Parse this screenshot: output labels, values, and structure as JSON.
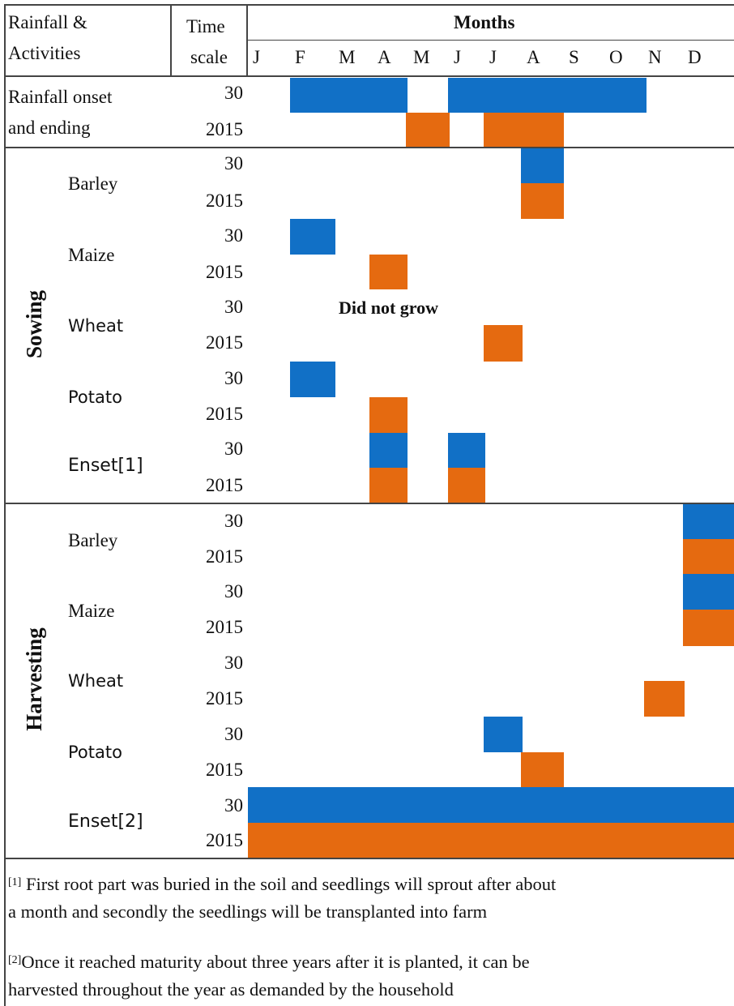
{
  "colors": {
    "period_30": "#1170c6",
    "year_2015": "#e56a10"
  },
  "header": {
    "activity": [
      "Rainfall &",
      "Activities"
    ],
    "time": [
      "Time",
      "scale"
    ],
    "months_title": "Months",
    "months": [
      "J",
      "F",
      "M",
      "A",
      "M",
      "J",
      "J",
      "A",
      "S",
      "O",
      "N",
      "D"
    ]
  },
  "rainfall": {
    "label": [
      "Rainfall onset",
      "and ending"
    ]
  },
  "periods": {
    "p30": "30",
    "p2015": "2015"
  },
  "sections": {
    "sowing": "Sowing",
    "harvesting": "Harvesting"
  },
  "crops": {
    "barley": "Barley",
    "maize": "Maize",
    "wheat": "Wheat",
    "potato": "Potato",
    "enset_sow": "Enset[1]",
    "enset_harvest": "Enset[2]"
  },
  "note_wheat": "Did not grow",
  "footnotes": {
    "f1_mark": "[1]",
    "f1_line1": " First root part was buried in the soil and seedlings will sprout after about",
    "f1_line2": "a month and secondly the seedlings will be transplanted into farm",
    "f2_mark": "[2]",
    "f2_line1": "Once it reached maturity about three years after it is planted, it can be",
    "f2_line2": "harvested throughout the year as demanded by the household"
  },
  "table_data": {
    "month_index_note": "1 = January ... 12 = December; spans are inclusive month ranges",
    "rainfall": {
      "30": [
        [
          2,
          5
        ],
        [
          6,
          10
        ]
      ],
      "2015": [
        [
          5,
          5
        ],
        [
          7,
          8
        ]
      ]
    },
    "sowing": {
      "Barley": {
        "30": [
          [
            8,
            8
          ]
        ],
        "2015": [
          [
            8,
            8
          ]
        ]
      },
      "Maize": {
        "30": [
          [
            2,
            2
          ]
        ],
        "2015": [
          [
            4,
            4
          ]
        ]
      },
      "Wheat": {
        "30": [],
        "2015": [
          [
            7,
            7
          ]
        ]
      },
      "Potato": {
        "30": [
          [
            2,
            2
          ]
        ],
        "2015": [
          [
            4,
            4
          ]
        ]
      },
      "Enset[1]": {
        "30": [
          [
            4,
            4
          ],
          [
            6,
            6
          ]
        ],
        "2015": [
          [
            4,
            4
          ],
          [
            6,
            6
          ]
        ]
      }
    },
    "harvesting": {
      "Barley": {
        "30": [
          [
            12,
            12
          ]
        ],
        "2015": [
          [
            12,
            12
          ]
        ]
      },
      "Maize": {
        "30": [
          [
            12,
            12
          ]
        ],
        "2015": [
          [
            12,
            12
          ]
        ]
      },
      "Wheat": {
        "30": [],
        "2015": [
          [
            11,
            11
          ]
        ]
      },
      "Potato": {
        "30": [
          [
            7,
            7
          ]
        ],
        "2015": [
          [
            8,
            8
          ]
        ]
      },
      "Enset[2]": {
        "30": [
          [
            1,
            12
          ]
        ],
        "2015": [
          [
            1,
            12
          ]
        ]
      }
    }
  }
}
